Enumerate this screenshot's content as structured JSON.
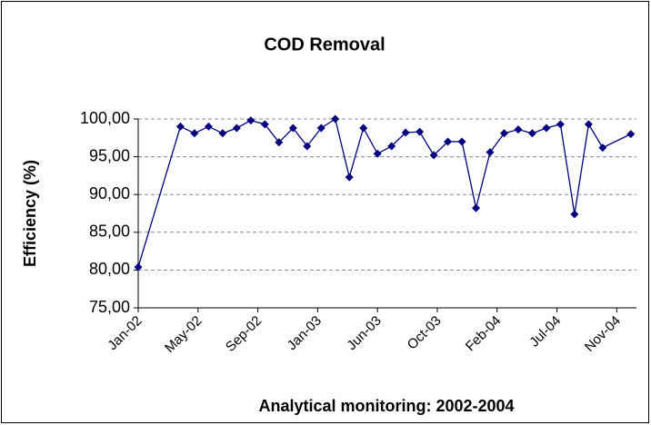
{
  "chart_data": {
    "type": "line",
    "title": "COD Removal",
    "x_label": "Analytical monitoring: 2002-2004",
    "y_label": "Efficiency (%)",
    "x": [
      0,
      3,
      4,
      5,
      6,
      7,
      8,
      9,
      10,
      11,
      12,
      13,
      14,
      15,
      16,
      17,
      18,
      19,
      20,
      21,
      22,
      23,
      24,
      25,
      26,
      27,
      28,
      29,
      30,
      31,
      32,
      33,
      35
    ],
    "series": [
      {
        "name": "COD Removal",
        "color": "#000080",
        "values": [
          80.4,
          99.0,
          98.1,
          99.0,
          98.1,
          98.8,
          99.8,
          99.3,
          96.9,
          98.8,
          96.4,
          98.8,
          100.0,
          92.3,
          98.8,
          95.4,
          96.4,
          98.2,
          98.3,
          95.2,
          97.0,
          97.0,
          88.2,
          95.6,
          98.1,
          98.6,
          98.1,
          98.8,
          99.3,
          87.4,
          99.3,
          96.2,
          98.0
        ]
      }
    ],
    "xlim": [
      0,
      35.4
    ],
    "xticks": [
      {
        "value": 0,
        "label": "Jan-02"
      },
      {
        "value": 4.25,
        "label": "May-02"
      },
      {
        "value": 8.5,
        "label": "Sep-02"
      },
      {
        "value": 12.75,
        "label": "Jan-03"
      },
      {
        "value": 17,
        "label": "Jun-03"
      },
      {
        "value": 21.25,
        "label": "Oct-03"
      },
      {
        "value": 25.5,
        "label": "Feb-04"
      },
      {
        "value": 29.75,
        "label": "Jul-04"
      },
      {
        "value": 34,
        "label": "Nov-04"
      }
    ],
    "ylim": [
      75,
      100
    ],
    "yticks": [
      {
        "value": 75,
        "label": "75,00"
      },
      {
        "value": 80,
        "label": "80,00"
      },
      {
        "value": 85,
        "label": "85,00"
      },
      {
        "value": 90,
        "label": "90,00"
      },
      {
        "value": 95,
        "label": "95,00"
      },
      {
        "value": 100,
        "label": "100,00"
      }
    ],
    "grid": true
  }
}
